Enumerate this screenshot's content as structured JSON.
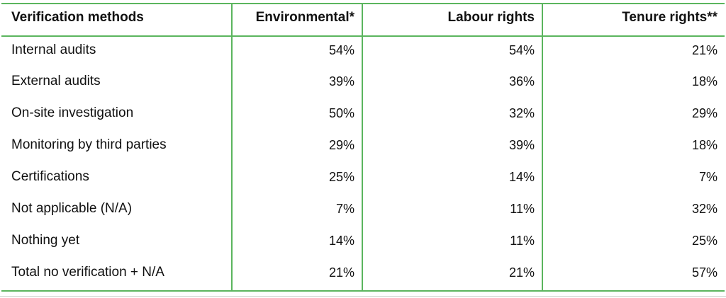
{
  "colors": {
    "border_green": "#5bb55e"
  },
  "chart_data": {
    "type": "table",
    "title": "Verification methods",
    "columns": [
      "Verification methods",
      "Environmental*",
      "Labour rights",
      "Tenure rights**"
    ],
    "rows": [
      {
        "label": "Internal audits",
        "values": [
          "54%",
          "54%",
          "21%"
        ]
      },
      {
        "label": "External audits",
        "values": [
          "39%",
          "36%",
          "18%"
        ]
      },
      {
        "label": "On-site investigation",
        "values": [
          "50%",
          "32%",
          "29%"
        ]
      },
      {
        "label": "Monitoring by third parties",
        "values": [
          "29%",
          "39%",
          "18%"
        ]
      },
      {
        "label": "Certifications",
        "values": [
          "25%",
          "14%",
          "7%"
        ]
      },
      {
        "label": "Not applicable (N/A)",
        "values": [
          "7%",
          "11%",
          "32%"
        ]
      },
      {
        "label": "Nothing yet",
        "values": [
          "14%",
          "11%",
          "25%"
        ]
      },
      {
        "label": "Total no verification + N/A",
        "values": [
          "21%",
          "21%",
          "57%"
        ]
      }
    ]
  }
}
